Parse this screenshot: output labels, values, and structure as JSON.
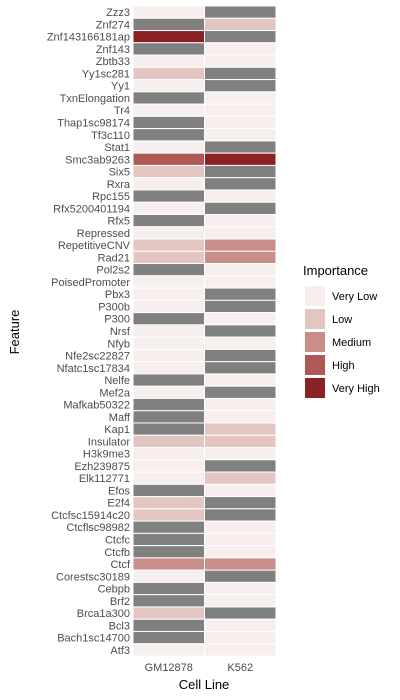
{
  "chart_data": {
    "type": "heatmap",
    "xlabel": "Cell Line",
    "ylabel": "Feature",
    "columns": [
      "GM12878",
      "K562"
    ],
    "rows": [
      {
        "feature": "Zzz3",
        "values": [
          "Very Low",
          "NA"
        ]
      },
      {
        "feature": "Znf274",
        "values": [
          "NA",
          "Low"
        ]
      },
      {
        "feature": "Znf143166181ap",
        "values": [
          "Very High",
          "NA"
        ]
      },
      {
        "feature": "Znf143",
        "values": [
          "NA",
          "Very Low"
        ]
      },
      {
        "feature": "Zbtb33",
        "values": [
          "Very Low",
          "Very Low"
        ]
      },
      {
        "feature": "Yy1sc281",
        "values": [
          "Low",
          "NA"
        ]
      },
      {
        "feature": "Yy1",
        "values": [
          "Very Low",
          "NA"
        ]
      },
      {
        "feature": "TxnElongation",
        "values": [
          "NA",
          "Very Low"
        ]
      },
      {
        "feature": "Tr4",
        "values": [
          "Very Low",
          "Very Low"
        ]
      },
      {
        "feature": "Thap1sc98174",
        "values": [
          "NA",
          "Very Low"
        ]
      },
      {
        "feature": "Tf3c110",
        "values": [
          "NA",
          "Very Low"
        ]
      },
      {
        "feature": "Stat1",
        "values": [
          "Very Low",
          "NA"
        ]
      },
      {
        "feature": "Smc3ab9263",
        "values": [
          "High",
          "Very High"
        ]
      },
      {
        "feature": "Six5",
        "values": [
          "Low",
          "NA"
        ]
      },
      {
        "feature": "Rxra",
        "values": [
          "Very Low",
          "NA"
        ]
      },
      {
        "feature": "Rpc155",
        "values": [
          "NA",
          "Very Low"
        ]
      },
      {
        "feature": "Rfx5200401194",
        "values": [
          "Very Low",
          "NA"
        ]
      },
      {
        "feature": "Rfx5",
        "values": [
          "NA",
          "Very Low"
        ]
      },
      {
        "feature": "Repressed",
        "values": [
          "Very Low",
          "Very Low"
        ]
      },
      {
        "feature": "RepetitiveCNV",
        "values": [
          "Low",
          "Medium"
        ]
      },
      {
        "feature": "Rad21",
        "values": [
          "Low",
          "Medium"
        ]
      },
      {
        "feature": "Pol2s2",
        "values": [
          "NA",
          "Very Low"
        ]
      },
      {
        "feature": "PoisedPromoter",
        "values": [
          "Very Low",
          "Very Low"
        ]
      },
      {
        "feature": "Pbx3",
        "values": [
          "Very Low",
          "NA"
        ]
      },
      {
        "feature": "P300b",
        "values": [
          "Very Low",
          "NA"
        ]
      },
      {
        "feature": "P300",
        "values": [
          "NA",
          "Very Low"
        ]
      },
      {
        "feature": "Nrsf",
        "values": [
          "Very Low",
          "NA"
        ]
      },
      {
        "feature": "Nfyb",
        "values": [
          "Very Low",
          "Very Low"
        ]
      },
      {
        "feature": "Nfe2sc22827",
        "values": [
          "Very Low",
          "NA"
        ]
      },
      {
        "feature": "Nfatc1sc17834",
        "values": [
          "Very Low",
          "NA"
        ]
      },
      {
        "feature": "Nelfe",
        "values": [
          "NA",
          "Very Low"
        ]
      },
      {
        "feature": "Mef2a",
        "values": [
          "Very Low",
          "NA"
        ]
      },
      {
        "feature": "Mafkab50322",
        "values": [
          "NA",
          "Very Low"
        ]
      },
      {
        "feature": "Maff",
        "values": [
          "NA",
          "Very Low"
        ]
      },
      {
        "feature": "Kap1",
        "values": [
          "NA",
          "Low"
        ]
      },
      {
        "feature": "Insulator",
        "values": [
          "Low",
          "Low"
        ]
      },
      {
        "feature": "H3k9me3",
        "values": [
          "Very Low",
          "Very Low"
        ]
      },
      {
        "feature": "Ezh239875",
        "values": [
          "Very Low",
          "NA"
        ]
      },
      {
        "feature": "Elk112771",
        "values": [
          "Very Low",
          "Low"
        ]
      },
      {
        "feature": "Efos",
        "values": [
          "NA",
          "Very Low"
        ]
      },
      {
        "feature": "E2f4",
        "values": [
          "Low",
          "NA"
        ]
      },
      {
        "feature": "Ctcfsc15914c20",
        "values": [
          "Low",
          "NA"
        ]
      },
      {
        "feature": "Ctcflsc98982",
        "values": [
          "NA",
          "Very Low"
        ]
      },
      {
        "feature": "Ctcfc",
        "values": [
          "NA",
          "Very Low"
        ]
      },
      {
        "feature": "Ctcfb",
        "values": [
          "NA",
          "Very Low"
        ]
      },
      {
        "feature": "Ctcf",
        "values": [
          "Medium",
          "Medium"
        ]
      },
      {
        "feature": "Corestsc30189",
        "values": [
          "Very Low",
          "NA"
        ]
      },
      {
        "feature": "Cebpb",
        "values": [
          "NA",
          "Very Low"
        ]
      },
      {
        "feature": "Brf2",
        "values": [
          "NA",
          "Very Low"
        ]
      },
      {
        "feature": "Brca1a300",
        "values": [
          "Low",
          "NA"
        ]
      },
      {
        "feature": "Bcl3",
        "values": [
          "NA",
          "Very Low"
        ]
      },
      {
        "feature": "Bach1sc14700",
        "values": [
          "NA",
          "Very Low"
        ]
      },
      {
        "feature": "Atf3",
        "values": [
          "Very Low",
          "Very Low"
        ]
      }
    ],
    "legend": {
      "title": "Importance",
      "placement": "right",
      "levels": [
        {
          "label": "Very Low",
          "color": "#f7eeee"
        },
        {
          "label": "Low",
          "color": "#e3c5c2"
        },
        {
          "label": "Medium",
          "color": "#c98e89"
        },
        {
          "label": "High",
          "color": "#ae5953"
        },
        {
          "label": "Very High",
          "color": "#8b2025"
        }
      ]
    },
    "na_color": "#808080",
    "grid": true
  }
}
